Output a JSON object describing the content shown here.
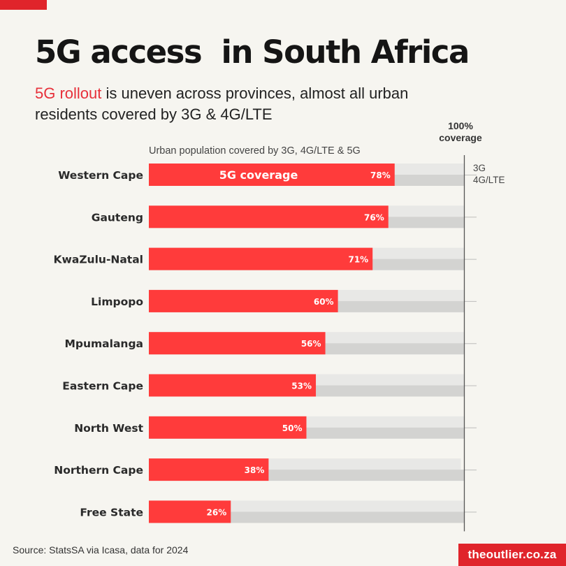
{
  "header": {
    "title": "5G access  in South Africa",
    "subtitle_highlight": "5G rollout",
    "subtitle_rest": " is uneven across provinces, almost all urban residents covered by 3G & 4G/LTE"
  },
  "chart_data": {
    "type": "bar",
    "orientation": "horizontal",
    "title": "5G access  in South Africa",
    "axis_caption": "Urban population covered by 3G, 4G/LTE & 5G",
    "reference_label": "100%\ncoverage",
    "series_label_inside": "5G coverage",
    "side_labels": [
      "3G",
      "4G/LTE"
    ],
    "xlim": [
      0,
      100
    ],
    "categories": [
      "Western Cape",
      "Gauteng",
      "KwaZulu-Natal",
      "Limpopo",
      "Mpumalanga",
      "Eastern Cape",
      "North West",
      "Northern Cape",
      "Free State"
    ],
    "series": [
      {
        "name": "5G coverage",
        "values": [
          78,
          76,
          71,
          60,
          56,
          53,
          50,
          38,
          26
        ],
        "color": "#ff3b3b"
      },
      {
        "name": "3G",
        "values": [
          100,
          100,
          100,
          100,
          100,
          100,
          100,
          99,
          100
        ],
        "color": "#e8e8e6"
      },
      {
        "name": "4G/LTE",
        "values": [
          100,
          100,
          100,
          100,
          100,
          100,
          100,
          100,
          100
        ],
        "color": "#d3d3d1"
      }
    ],
    "data_labels": [
      "78%",
      "76%",
      "71%",
      "60%",
      "56%",
      "53%",
      "50%",
      "38%",
      "26%"
    ]
  },
  "footer": {
    "source": "Source: StatsSA via Icasa, data for 2024",
    "brand": "theoutlier.co.za"
  },
  "colors": {
    "accent": "#e0242b",
    "bar_5g": "#ff3b3b",
    "bar_3g": "#e8e8e6",
    "bar_4g": "#d3d3d1",
    "background": "#f6f5f0"
  }
}
